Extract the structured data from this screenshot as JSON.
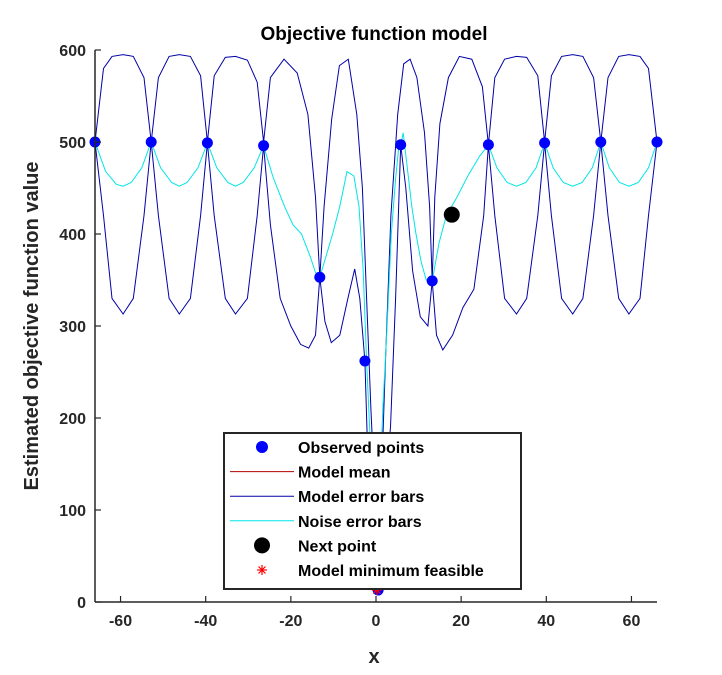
{
  "chart_data": {
    "type": "line",
    "title": "Objective function model",
    "xlabel": "x",
    "ylabel": "Estimated objective function value",
    "xlim": [
      -66,
      66
    ],
    "ylim": [
      0,
      600
    ],
    "xticks": [
      -60,
      -40,
      -20,
      0,
      20,
      40,
      60
    ],
    "yticks": [
      0,
      100,
      200,
      300,
      400,
      500,
      600
    ],
    "xtick_labels": [
      "-60",
      "-40",
      "-20",
      "0",
      "20",
      "40",
      "60"
    ],
    "ytick_labels": [
      "0",
      "100",
      "200",
      "300",
      "400",
      "500",
      "600"
    ],
    "grid": false,
    "legend_position": "bottom-center",
    "colors": {
      "observed": "#0000ff",
      "model_mean": "#b00000",
      "model_error": "#0000a8",
      "noise_error": "#00e5e5",
      "next_point": "#000000",
      "model_min": "#ff0000"
    },
    "observed_points": {
      "name": "Observed points",
      "x": [
        -66,
        -52.8,
        -39.6,
        -26.4,
        -13.2,
        -2.6,
        0.5,
        5.8,
        13.2,
        26.4,
        39.6,
        52.8,
        66
      ],
      "y": [
        500,
        500,
        499,
        496,
        353,
        262,
        13,
        497,
        349,
        497,
        499,
        500,
        500
      ]
    },
    "model_mean": {
      "name": "Model mean"
    },
    "model_error_bars": {
      "name": "Model error bars",
      "upper_x": [
        -66,
        -64,
        -62,
        -59.4,
        -57,
        -54.5,
        -52.8,
        -51.1,
        -48.6,
        -46.2,
        -43.6,
        -41.2,
        -39.6,
        -38,
        -35.4,
        -33,
        -30.2,
        -27.9,
        -26.4,
        -24.8,
        -21.6,
        -18.5,
        -16,
        -14.2,
        -13.2,
        -12.2,
        -10.4,
        -8.6,
        -6.5,
        -4.5,
        -3.2,
        -2.2,
        -1.2,
        -0.2,
        0.4,
        1.2,
        2.2,
        3.5,
        5.1,
        6.5,
        8,
        9.6,
        11.4,
        12.6,
        13.2,
        13.8,
        15,
        17,
        19.6,
        22.5,
        25,
        26.4,
        27.9,
        30.2,
        33,
        35.4,
        38,
        39.6,
        41.2,
        43.6,
        46.2,
        48.6,
        51.1,
        52.8,
        54.5,
        57,
        59.4,
        62,
        64,
        66
      ],
      "upper_y": [
        500,
        580,
        593,
        595,
        593,
        570,
        500,
        570,
        593,
        595,
        593,
        572,
        500,
        572,
        592,
        593,
        589,
        565,
        500,
        570,
        590,
        575,
        530,
        440,
        353,
        430,
        525,
        583,
        590,
        530,
        450,
        330,
        210,
        110,
        14,
        120,
        260,
        420,
        530,
        585,
        590,
        570,
        510,
        430,
        349,
        440,
        520,
        570,
        593,
        590,
        560,
        497,
        570,
        590,
        593,
        592,
        572,
        500,
        572,
        593,
        595,
        593,
        570,
        500,
        570,
        593,
        595,
        593,
        580,
        500
      ],
      "lower_x": [
        -66,
        -64,
        -62,
        -59.4,
        -57,
        -54.5,
        -52.8,
        -51.1,
        -48.6,
        -46.2,
        -43.6,
        -41.2,
        -39.6,
        -38,
        -35.4,
        -33,
        -30.2,
        -27.9,
        -26.4,
        -24.8,
        -22.5,
        -20,
        -17.7,
        -15.8,
        -14.2,
        -13.2,
        -12,
        -10.5,
        -8.5,
        -6.6,
        -5,
        -3.8,
        -2.6,
        -1.8,
        -0.8,
        0.2,
        0.6,
        1.2,
        2.2,
        3.4,
        4.6,
        5.8,
        7,
        8.6,
        10.4,
        12.2,
        13.2,
        14.2,
        15.7,
        18,
        20.4,
        23,
        25.3,
        26.4,
        27.9,
        30.2,
        33,
        35.4,
        38,
        39.6,
        41.2,
        43.6,
        46.2,
        48.6,
        51.1,
        52.8,
        54.5,
        57,
        59.4,
        62,
        64,
        66
      ],
      "lower_y": [
        500,
        420,
        330,
        313,
        330,
        420,
        500,
        420,
        330,
        313,
        330,
        420,
        499,
        420,
        330,
        313,
        330,
        420,
        496,
        410,
        330,
        300,
        280,
        276,
        290,
        353,
        305,
        282,
        290,
        330,
        362,
        330,
        262,
        140,
        40,
        13,
        40,
        100,
        130,
        190,
        330,
        497,
        450,
        360,
        310,
        300,
        349,
        290,
        274,
        290,
        320,
        340,
        420,
        497,
        420,
        330,
        313,
        330,
        420,
        499,
        420,
        330,
        313,
        330,
        420,
        500,
        420,
        330,
        313,
        330,
        420,
        500
      ]
    },
    "noise_error_bars": {
      "name": "Noise error bars",
      "x": [
        -66,
        -63.5,
        -61,
        -59.4,
        -57.5,
        -55,
        -52.8,
        -50.6,
        -48,
        -46.2,
        -44.4,
        -41.8,
        -39.6,
        -37.4,
        -34.8,
        -33,
        -31.2,
        -28.6,
        -26.4,
        -24.2,
        -21.5,
        -19.5,
        -17.5,
        -15.4,
        -14.2,
        -13.2,
        -11.8,
        -10.2,
        -8.5,
        -6.8,
        -5.2,
        -4,
        -3,
        -2.2,
        -1.4,
        -0.6,
        0.2,
        0.8,
        1.6,
        2.6,
        3.6,
        4.6,
        5.4,
        5.8,
        6.4,
        7.4,
        8.4,
        9.4,
        10.6,
        11.8,
        13.2,
        14.8,
        16.5,
        19,
        21.8,
        24.4,
        26.4,
        28.4,
        30.8,
        33,
        35.2,
        37.6,
        39.6,
        41.6,
        44,
        46.2,
        48.4,
        50.8,
        52.8,
        54.8,
        57.2,
        59.4,
        61.6,
        64,
        66
      ],
      "y": [
        500,
        468,
        454,
        452,
        456,
        472,
        500,
        472,
        456,
        452,
        456,
        472,
        499,
        472,
        456,
        452,
        456,
        472,
        496,
        462,
        430,
        410,
        400,
        375,
        358,
        353,
        375,
        400,
        430,
        468,
        463,
        430,
        360,
        262,
        180,
        90,
        13,
        110,
        210,
        300,
        400,
        460,
        497,
        497,
        510,
        470,
        430,
        400,
        370,
        350,
        349,
        390,
        420,
        440,
        465,
        485,
        497,
        472,
        456,
        452,
        456,
        472,
        499,
        472,
        456,
        452,
        456,
        472,
        500,
        472,
        456,
        452,
        456,
        472,
        500
      ]
    },
    "next_point": {
      "name": "Next point",
      "x": 17.8,
      "y": 421
    },
    "model_minimum_feasible": {
      "name": "Model minimum feasible",
      "x": 0.2,
      "y": 13
    },
    "legend": [
      "Observed points",
      "Model mean",
      "Model error bars",
      "Noise error bars",
      "Next point",
      "Model minimum feasible"
    ]
  }
}
